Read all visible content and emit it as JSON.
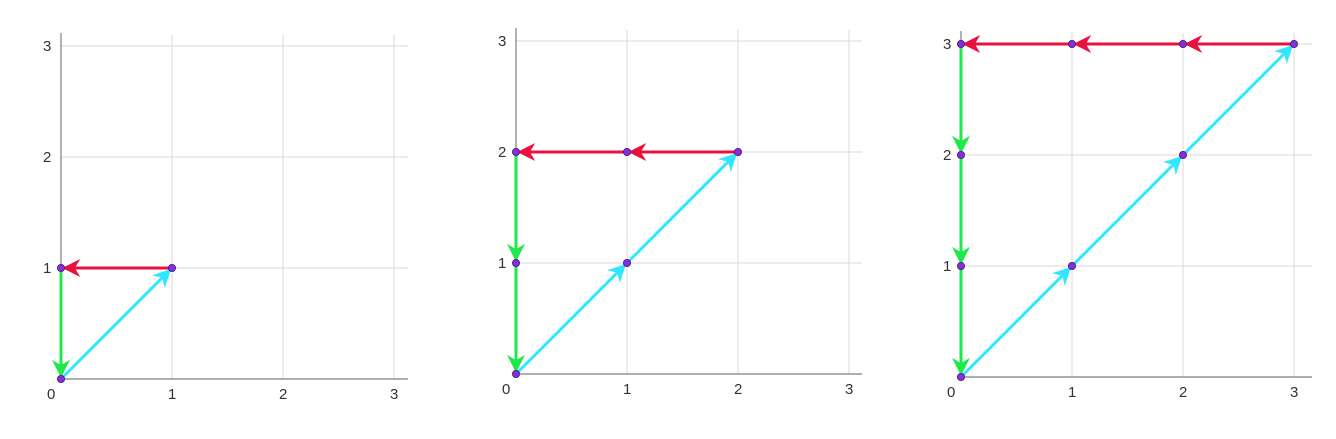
{
  "colors": {
    "up_arrow": "#33e6ff",
    "left_arrow": "#e8103c",
    "down_arrow": "#1fe84a",
    "vertex": "#8a2be2",
    "grid": "#d9d9d9",
    "axis": "#7f7f7f"
  },
  "panels": [
    {
      "x_ticks": [
        "0",
        "1",
        "2",
        "3"
      ],
      "y_ticks": [
        "1",
        "2",
        "3"
      ],
      "x_range": [
        0,
        3
      ],
      "y_range": [
        0,
        3
      ],
      "vertices": [
        [
          0,
          0
        ],
        [
          1,
          1
        ],
        [
          0,
          1
        ]
      ],
      "arrows": [
        {
          "from": [
            0,
            0
          ],
          "to": [
            1,
            1
          ],
          "color": "up_arrow"
        },
        {
          "from": [
            1,
            1
          ],
          "to": [
            0,
            1
          ],
          "color": "left_arrow"
        },
        {
          "from": [
            0,
            1
          ],
          "to": [
            0,
            0
          ],
          "color": "down_arrow"
        }
      ]
    },
    {
      "x_ticks": [
        "0",
        "1",
        "2",
        "3"
      ],
      "y_ticks": [
        "1",
        "2",
        "3"
      ],
      "x_range": [
        0,
        3
      ],
      "y_range": [
        0,
        3
      ],
      "vertices": [
        [
          0,
          0
        ],
        [
          1,
          1
        ],
        [
          2,
          2
        ],
        [
          1,
          2
        ],
        [
          0,
          2
        ],
        [
          0,
          1
        ]
      ],
      "arrows": [
        {
          "from": [
            0,
            0
          ],
          "to": [
            1,
            1
          ],
          "color": "up_arrow"
        },
        {
          "from": [
            1,
            1
          ],
          "to": [
            2,
            2
          ],
          "color": "up_arrow"
        },
        {
          "from": [
            2,
            2
          ],
          "to": [
            1,
            2
          ],
          "color": "left_arrow"
        },
        {
          "from": [
            1,
            2
          ],
          "to": [
            0,
            2
          ],
          "color": "left_arrow"
        },
        {
          "from": [
            0,
            2
          ],
          "to": [
            0,
            1
          ],
          "color": "down_arrow"
        },
        {
          "from": [
            0,
            1
          ],
          "to": [
            0,
            0
          ],
          "color": "down_arrow"
        }
      ]
    },
    {
      "x_ticks": [
        "0",
        "1",
        "2",
        "3"
      ],
      "y_ticks": [
        "1",
        "2",
        "3"
      ],
      "x_range": [
        0,
        3
      ],
      "y_range": [
        0,
        3
      ],
      "vertices": [
        [
          0,
          0
        ],
        [
          1,
          1
        ],
        [
          2,
          2
        ],
        [
          3,
          3
        ],
        [
          2,
          3
        ],
        [
          1,
          3
        ],
        [
          0,
          3
        ],
        [
          0,
          2
        ],
        [
          0,
          1
        ]
      ],
      "arrows": [
        {
          "from": [
            0,
            0
          ],
          "to": [
            1,
            1
          ],
          "color": "up_arrow"
        },
        {
          "from": [
            1,
            1
          ],
          "to": [
            2,
            2
          ],
          "color": "up_arrow"
        },
        {
          "from": [
            2,
            2
          ],
          "to": [
            3,
            3
          ],
          "color": "up_arrow"
        },
        {
          "from": [
            3,
            3
          ],
          "to": [
            2,
            3
          ],
          "color": "left_arrow"
        },
        {
          "from": [
            2,
            3
          ],
          "to": [
            1,
            3
          ],
          "color": "left_arrow"
        },
        {
          "from": [
            1,
            3
          ],
          "to": [
            0,
            3
          ],
          "color": "left_arrow"
        },
        {
          "from": [
            0,
            3
          ],
          "to": [
            0,
            2
          ],
          "color": "down_arrow"
        },
        {
          "from": [
            0,
            2
          ],
          "to": [
            0,
            1
          ],
          "color": "down_arrow"
        },
        {
          "from": [
            0,
            1
          ],
          "to": [
            0,
            0
          ],
          "color": "down_arrow"
        }
      ]
    }
  ]
}
